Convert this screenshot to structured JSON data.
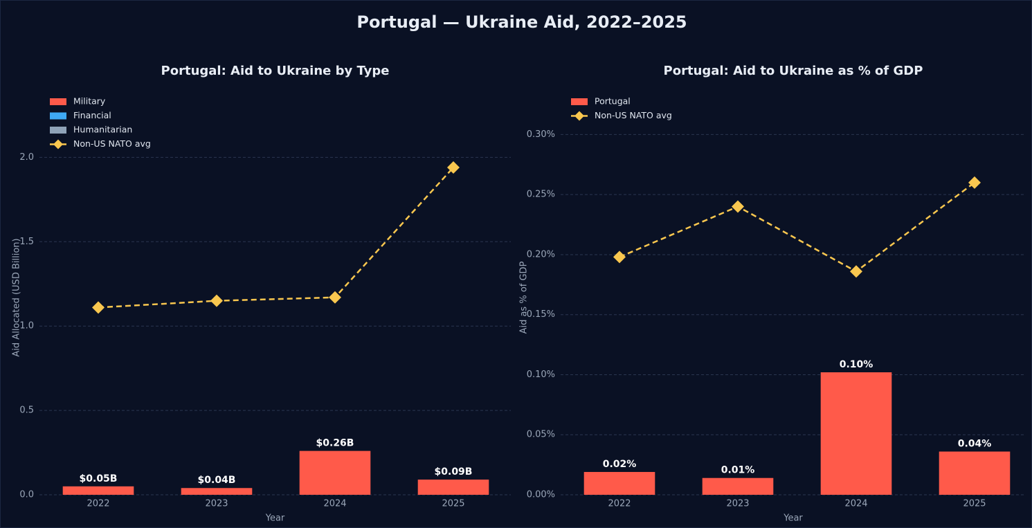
{
  "title": "Portugal — Ukraine Aid, 2022–2025",
  "chart_data": [
    {
      "type": "bar",
      "stacked": true,
      "title": "Portugal: Aid to Ukraine by Type",
      "xlabel": "Year",
      "ylabel": "Aid Allocated (USD Billion)",
      "categories": [
        "2022",
        "2023",
        "2024",
        "2025"
      ],
      "series": [
        {
          "name": "Military",
          "color": "#ff5a4a",
          "values": [
            0.05,
            0.04,
            0.26,
            0.09
          ],
          "value_labels": [
            "$0.05B",
            "$0.04B",
            "$0.26B",
            "$0.09B"
          ]
        },
        {
          "name": "Financial",
          "color": "#3fa9f5",
          "values": [
            0,
            0,
            0,
            0
          ]
        },
        {
          "name": "Humanitarian",
          "color": "#8fa3b8",
          "values": [
            0,
            0,
            0,
            0
          ]
        },
        {
          "name": "Non-US NATO avg",
          "type": "line",
          "color": "#f9c74f",
          "marker": "diamond",
          "linestyle": "dashed",
          "values": [
            1.11,
            1.15,
            1.17,
            1.94
          ]
        }
      ],
      "ylim": [
        0,
        2.42
      ],
      "yticks": [
        {
          "value": 0,
          "label": "0.0"
        },
        {
          "value": 0.5,
          "label": "0.5"
        },
        {
          "value": 1,
          "label": "1.0"
        },
        {
          "value": 1.5,
          "label": "1.5"
        },
        {
          "value": 2,
          "label": "2.0"
        }
      ],
      "grid": true,
      "legend": "upper left"
    },
    {
      "type": "bar",
      "title": "Portugal: Aid to Ukraine as % of GDP",
      "xlabel": "Year",
      "ylabel": "Aid as % of GDP",
      "categories": [
        "2022",
        "2023",
        "2024",
        "2025"
      ],
      "series": [
        {
          "name": "Portugal",
          "color": "#ff5a4a",
          "values": [
            0.019,
            0.014,
            0.102,
            0.036
          ],
          "value_labels": [
            "0.02%",
            "0.01%",
            "0.10%",
            "0.04%"
          ]
        },
        {
          "name": "Non-US NATO avg",
          "type": "line",
          "color": "#f9c74f",
          "marker": "diamond",
          "linestyle": "dashed",
          "values": [
            0.198,
            0.24,
            0.186,
            0.26
          ]
        }
      ],
      "ylim": [
        0,
        0.34
      ],
      "yticks": [
        {
          "value": 0,
          "label": "0.00%"
        },
        {
          "value": 0.05,
          "label": "0.05%"
        },
        {
          "value": 0.1,
          "label": "0.10%"
        },
        {
          "value": 0.15,
          "label": "0.15%"
        },
        {
          "value": 0.2,
          "label": "0.20%"
        },
        {
          "value": 0.25,
          "label": "0.25%"
        },
        {
          "value": 0.3,
          "label": "0.30%"
        }
      ],
      "grid": true,
      "legend": "upper left"
    }
  ]
}
